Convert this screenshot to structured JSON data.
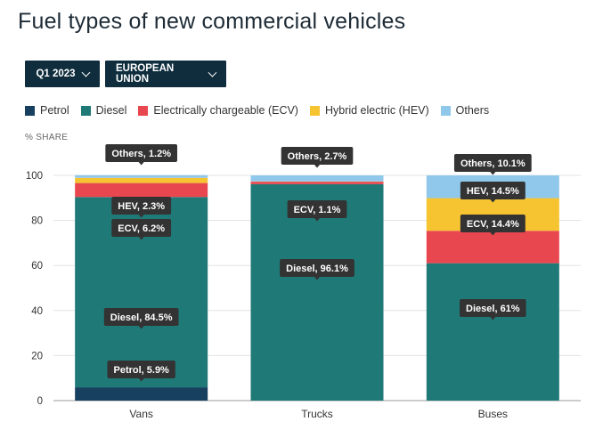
{
  "title": "Fuel types of new commercial vehicles",
  "filters": {
    "period": "Q1 2023",
    "region": "EUROPEAN UNION"
  },
  "legend": [
    {
      "label": "Petrol",
      "color": "#173f5f"
    },
    {
      "label": "Diesel",
      "color": "#1f7a77"
    },
    {
      "label": "Electrically chargeable (ECV)",
      "color": "#e8474f"
    },
    {
      "label": "Hybrid electric (HEV)",
      "color": "#f6c431"
    },
    {
      "label": "Others",
      "color": "#90c8ec"
    }
  ],
  "axis_caption": "% SHARE",
  "chart_data": {
    "type": "bar",
    "stacked": true,
    "categories": [
      "Vans",
      "Trucks",
      "Buses"
    ],
    "ylabel": "% SHARE",
    "ylim": [
      0,
      100
    ],
    "yticks": [
      0,
      20,
      40,
      60,
      80,
      100
    ],
    "series": [
      {
        "name": "Petrol",
        "color": "#173f5f",
        "values": [
          5.9,
          0,
          0
        ]
      },
      {
        "name": "Diesel",
        "color": "#1f7a77",
        "values": [
          84.5,
          96.1,
          61
        ]
      },
      {
        "name": "Electrically chargeable (ECV)",
        "color": "#e8474f",
        "values": [
          6.2,
          1.1,
          14.4
        ]
      },
      {
        "name": "Hybrid electric (HEV)",
        "color": "#f6c431",
        "values": [
          2.3,
          0.1,
          14.5
        ]
      },
      {
        "name": "Others",
        "color": "#90c8ec",
        "values": [
          1.2,
          2.7,
          10.1
        ]
      }
    ],
    "annotations": [
      {
        "category": "Vans",
        "label": "Petrol, 5.9%"
      },
      {
        "category": "Vans",
        "label": "Diesel, 84.5%"
      },
      {
        "category": "Vans",
        "label": "ECV, 6.2%"
      },
      {
        "category": "Vans",
        "label": "HEV, 2.3%"
      },
      {
        "category": "Vans",
        "label": "Others, 1.2%"
      },
      {
        "category": "Trucks",
        "label": "Diesel, 96.1%"
      },
      {
        "category": "Trucks",
        "label": "ECV, 1.1%"
      },
      {
        "category": "Trucks",
        "label": "Others, 2.7%"
      },
      {
        "category": "Buses",
        "label": "Diesel, 61%"
      },
      {
        "category": "Buses",
        "label": "ECV, 14.4%"
      },
      {
        "category": "Buses",
        "label": "HEV, 14.5%"
      },
      {
        "category": "Buses",
        "label": "Others, 10.1%"
      }
    ]
  }
}
